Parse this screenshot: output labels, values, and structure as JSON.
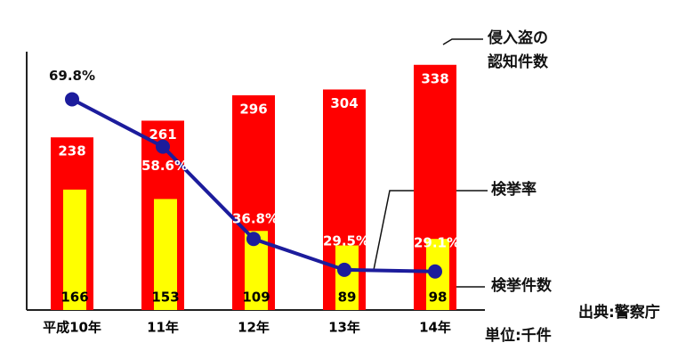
{
  "chart_data": {
    "type": "bar",
    "categories": [
      "平成10年",
      "11年",
      "12年",
      "13年",
      "14年"
    ],
    "series": [
      {
        "name": "侵入盗の\n認知件数",
        "type": "bar",
        "color": "#ff0000",
        "values": [
          238,
          261,
          296,
          304,
          338
        ]
      },
      {
        "name": "検挙件数",
        "type": "bar",
        "color": "#ffff00",
        "values": [
          166,
          153,
          109,
          89,
          98
        ]
      },
      {
        "name": "検挙率",
        "type": "line",
        "axis": "y2",
        "color": "#1c1c9c",
        "values": [
          69.8,
          58.6,
          36.8,
          29.5,
          29.1
        ],
        "value_labels": [
          "69.8%",
          "58.6%",
          "36.8%",
          "29.5%",
          "29.1%"
        ]
      }
    ],
    "ylim": [
      0,
      350
    ],
    "y2lim": [
      20,
      80
    ],
    "source": "出典:警察庁",
    "unit": "単位:千件"
  }
}
